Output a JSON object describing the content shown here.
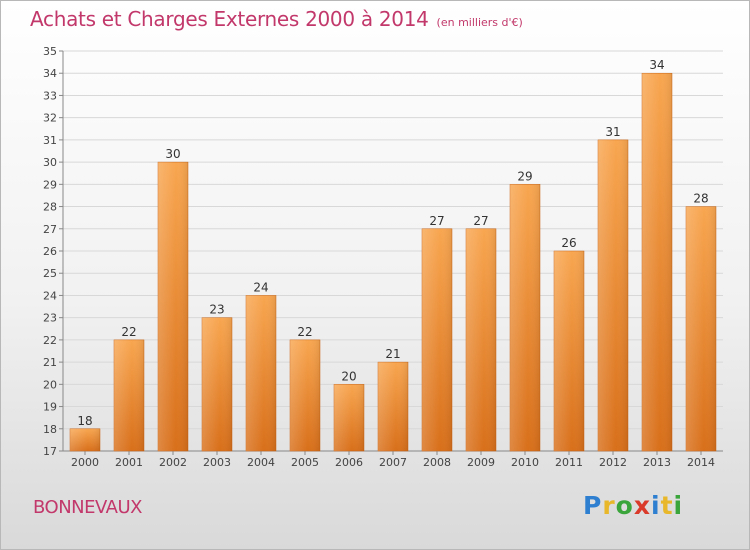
{
  "header": {
    "title": "Achats et Charges Externes 2000 à 2014",
    "subtitle": "(en milliers d'€)"
  },
  "footer": {
    "location": "BONNEVAUX",
    "logo_text": "Proxiti",
    "logo_letters": [
      {
        "ch": "P",
        "color": "#2e7fd0"
      },
      {
        "ch": "r",
        "color": "#e8b82a"
      },
      {
        "ch": "o",
        "color": "#3aa53a"
      },
      {
        "ch": "x",
        "color": "#d93a2a"
      },
      {
        "ch": "i",
        "color": "#2e7fd0"
      },
      {
        "ch": "t",
        "color": "#e8b82a"
      },
      {
        "ch": "i",
        "color": "#3aa53a"
      }
    ]
  },
  "colors": {
    "title": "#c2386a",
    "bar_light": "#f8a650",
    "bar_dark": "#d86f1a",
    "gridline": "#d8d8d8",
    "axis_text": "#444444"
  },
  "chart_data": {
    "type": "bar",
    "title": "Achats et Charges Externes 2000 à 2014",
    "subtitle": "(en milliers d'€)",
    "xlabel": "",
    "ylabel": "",
    "categories": [
      "2000",
      "2001",
      "2002",
      "2003",
      "2004",
      "2005",
      "2006",
      "2007",
      "2008",
      "2009",
      "2010",
      "2011",
      "2012",
      "2013",
      "2014"
    ],
    "values": [
      18,
      22,
      30,
      23,
      24,
      22,
      20,
      21,
      27,
      27,
      29,
      26,
      31,
      34,
      28
    ],
    "ylim": [
      17,
      35
    ],
    "yticks": [
      17,
      18,
      19,
      20,
      21,
      22,
      23,
      24,
      25,
      26,
      27,
      28,
      29,
      30,
      31,
      32,
      33,
      34,
      35
    ],
    "grid": true,
    "legend": "none"
  }
}
